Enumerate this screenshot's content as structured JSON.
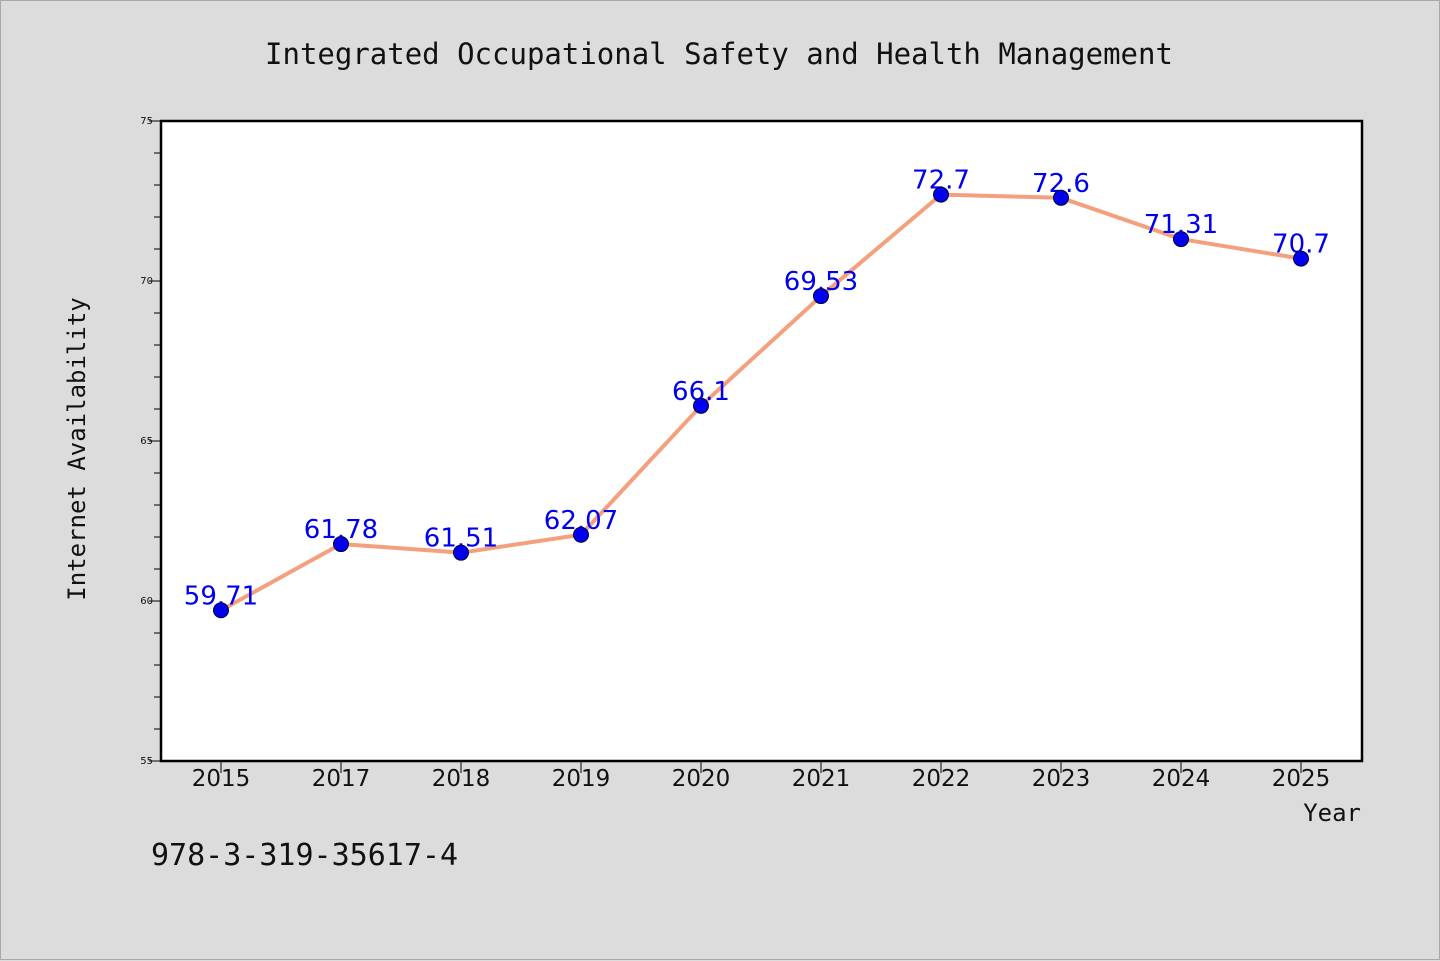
{
  "chart_data": {
    "type": "line",
    "title": "Integrated Occupational Safety and Health Management",
    "xlabel": "Year",
    "ylabel": "Internet Availability",
    "categories": [
      "2015",
      "2017",
      "2018",
      "2019",
      "2020",
      "2021",
      "2022",
      "2023",
      "2024",
      "2025"
    ],
    "series": [
      {
        "values": [
          59.71,
          61.78,
          61.51,
          62.07,
          66.1,
          69.53,
          72.7,
          72.6,
          71.31,
          70.7
        ],
        "labels": [
          "59.71",
          "61.78",
          "61.51",
          "62.07",
          "66.1",
          "69.53",
          "72.7",
          "72.6",
          "71.31",
          "70.7"
        ],
        "line_color": "#f4a07c",
        "marker_color": "#0000ee"
      }
    ],
    "ylim": [
      55,
      75
    ],
    "yticks": [
      "55",
      "60",
      "65",
      "70",
      "75"
    ],
    "grid": false,
    "legend": "none"
  },
  "footer": {
    "isbn": "978-3-319-35617-4"
  }
}
